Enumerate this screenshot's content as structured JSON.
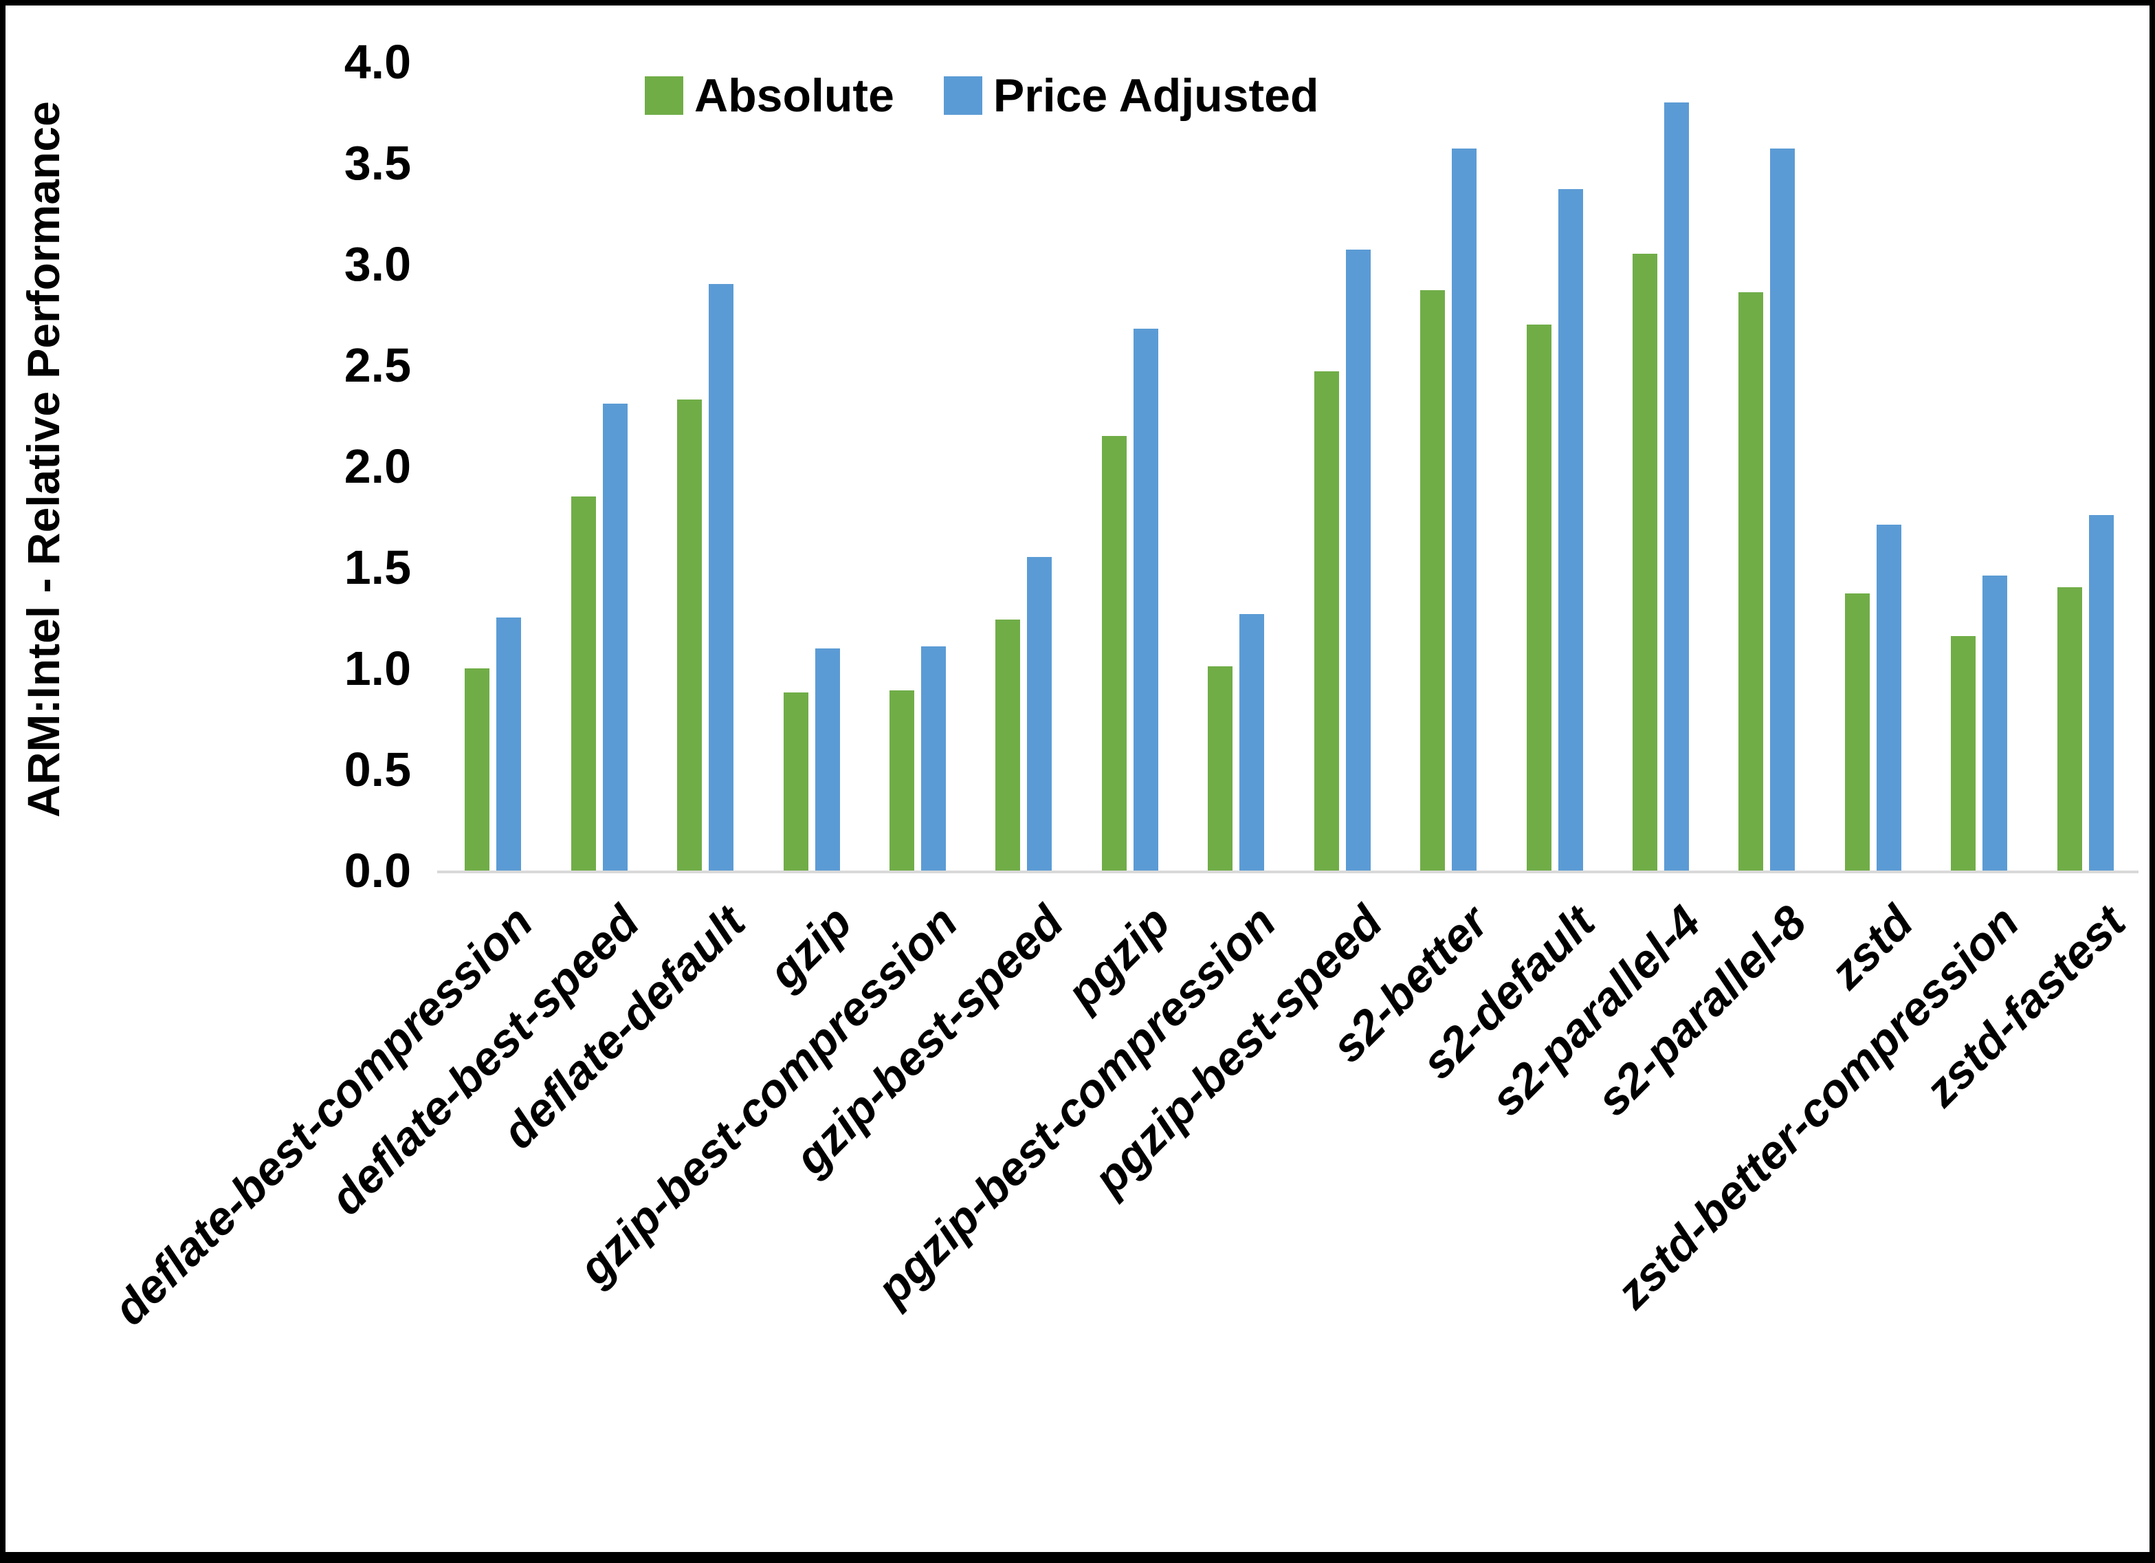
{
  "chart_data": {
    "type": "bar",
    "title": "",
    "ylabel": "ARM:Intel - Relative Performance",
    "xlabel": "",
    "ylim": [
      0,
      4.0
    ],
    "ytick_step": 0.5,
    "grid": false,
    "legend_position": "top-center",
    "axis_line_color": "#d9d9d9",
    "text_color": "#000000",
    "background_color": "#ffffff",
    "frame_border_color": "#000000",
    "categories": [
      "deflate-best-compression",
      "deflate-best-speed",
      "deflate-default",
      "gzip",
      "gzip-best-compression",
      "gzip-best-speed",
      "pgzip",
      "pgzip-best-compression",
      "pgzip-best-speed",
      "s2-better",
      "s2-default",
      "s2-parallel-4",
      "s2-parallel-8",
      "zstd",
      "zstd-better-compression",
      "zstd-fastest"
    ],
    "series": [
      {
        "name": "Absolute",
        "color": "#70AD47",
        "values": [
          1.0,
          1.85,
          2.33,
          0.88,
          0.89,
          1.24,
          2.15,
          1.01,
          2.47,
          2.87,
          2.7,
          3.05,
          2.86,
          1.37,
          1.16,
          1.4
        ]
      },
      {
        "name": "Price Adjusted",
        "color": "#5B9BD5",
        "values": [
          1.25,
          2.31,
          2.9,
          1.1,
          1.11,
          1.55,
          2.68,
          1.27,
          3.07,
          3.57,
          3.37,
          3.8,
          3.57,
          1.71,
          1.46,
          1.76
        ]
      }
    ]
  }
}
